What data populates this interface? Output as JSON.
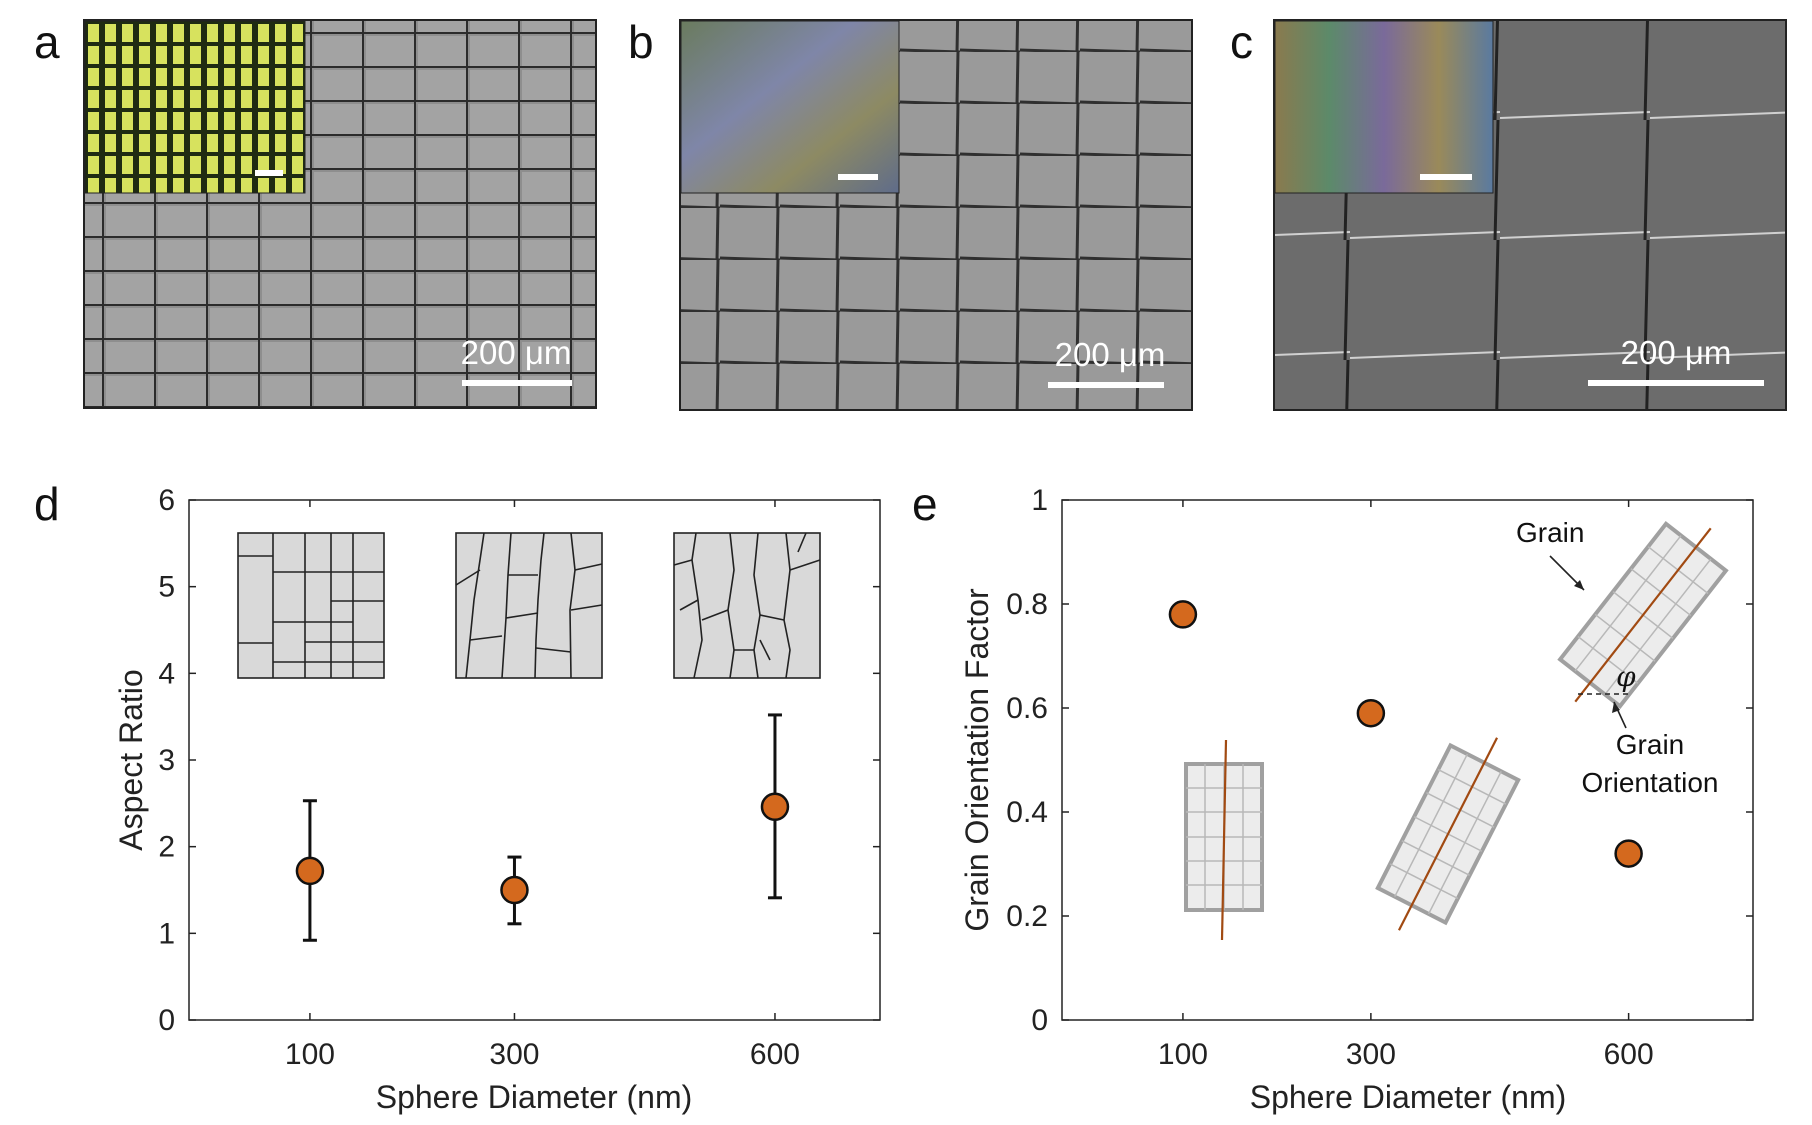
{
  "panels": {
    "a": {
      "label": "a",
      "scale_bar": "200 μm"
    },
    "b": {
      "label": "b",
      "scale_bar": "200 μm"
    },
    "c": {
      "label": "c",
      "scale_bar": "200 μm"
    }
  },
  "chart_data": [
    {
      "panel": "d",
      "label": "d",
      "type": "scatter",
      "xlabel": "Sphere Diameter (nm)",
      "ylabel": "Aspect Ratio",
      "categories": [
        "100",
        "300",
        "600"
      ],
      "values": [
        1.72,
        1.5,
        2.46
      ],
      "error_low": [
        0.92,
        1.11,
        1.41
      ],
      "error_high": [
        2.53,
        1.88,
        3.52
      ],
      "ylim": [
        0,
        6
      ],
      "yticks": [
        "0",
        "1",
        "2",
        "3",
        "4",
        "5",
        "6"
      ],
      "marker_color": "#d4691e",
      "grid": false
    },
    {
      "panel": "e",
      "label": "e",
      "type": "scatter",
      "xlabel": "Sphere Diameter (nm)",
      "ylabel": "Grain Orientation Factor",
      "categories": [
        "100",
        "300",
        "600"
      ],
      "values": [
        0.78,
        0.59,
        0.32
      ],
      "ylim": [
        0,
        1
      ],
      "yticks": [
        "0",
        "0.2",
        "0.4",
        "0.6",
        "0.8",
        "1"
      ],
      "marker_color": "#d4691e",
      "grid": false,
      "annotations": {
        "grain": "Grain",
        "phi": "φ",
        "orientation_line1": "Grain",
        "orientation_line2": "Orientation"
      }
    }
  ]
}
